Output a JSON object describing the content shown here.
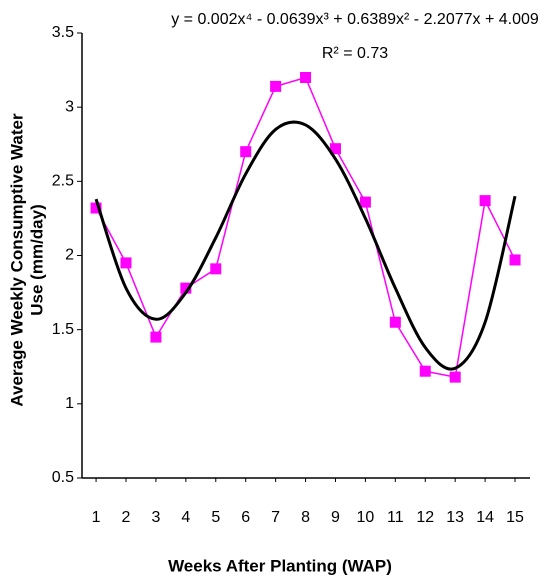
{
  "chart_data": {
    "type": "line",
    "equation": "y = 0.002x⁴ - 0.0639x³ + 0.6389x² - 2.2077x + 4.009",
    "r_squared": "R² = 0.73",
    "x_label": "Weeks After Planting  (WAP)",
    "y_label": [
      "Average Weekly Consumptive Water",
      "Use (mm/day)"
    ],
    "x": [
      1,
      2,
      3,
      4,
      5,
      6,
      7,
      8,
      9,
      10,
      11,
      12,
      13,
      14,
      15
    ],
    "xlim": [
      0.53,
      15.5
    ],
    "xticks": [
      1,
      2,
      3,
      4,
      5,
      6,
      7,
      8,
      9,
      10,
      11,
      12,
      13,
      14,
      15
    ],
    "ylim": [
      0.5,
      3.5
    ],
    "yticks": [
      0.5,
      1,
      1.5,
      2,
      2.5,
      3,
      3.5
    ],
    "series": [
      {
        "color": "#ff00ff",
        "values": [
          2.32,
          1.95,
          1.45,
          1.78,
          1.91,
          2.7,
          3.14,
          3.2,
          2.72,
          2.36,
          1.55,
          1.22,
          1.18,
          2.37,
          1.97
        ]
      },
      {
        "color": "#000000",
        "trend": true,
        "values": [
          2.38,
          1.78,
          1.57,
          1.75,
          2.12,
          2.55,
          2.85,
          2.88,
          2.65,
          2.25,
          1.78,
          1.38,
          1.24,
          1.55,
          2.4
        ]
      }
    ]
  }
}
